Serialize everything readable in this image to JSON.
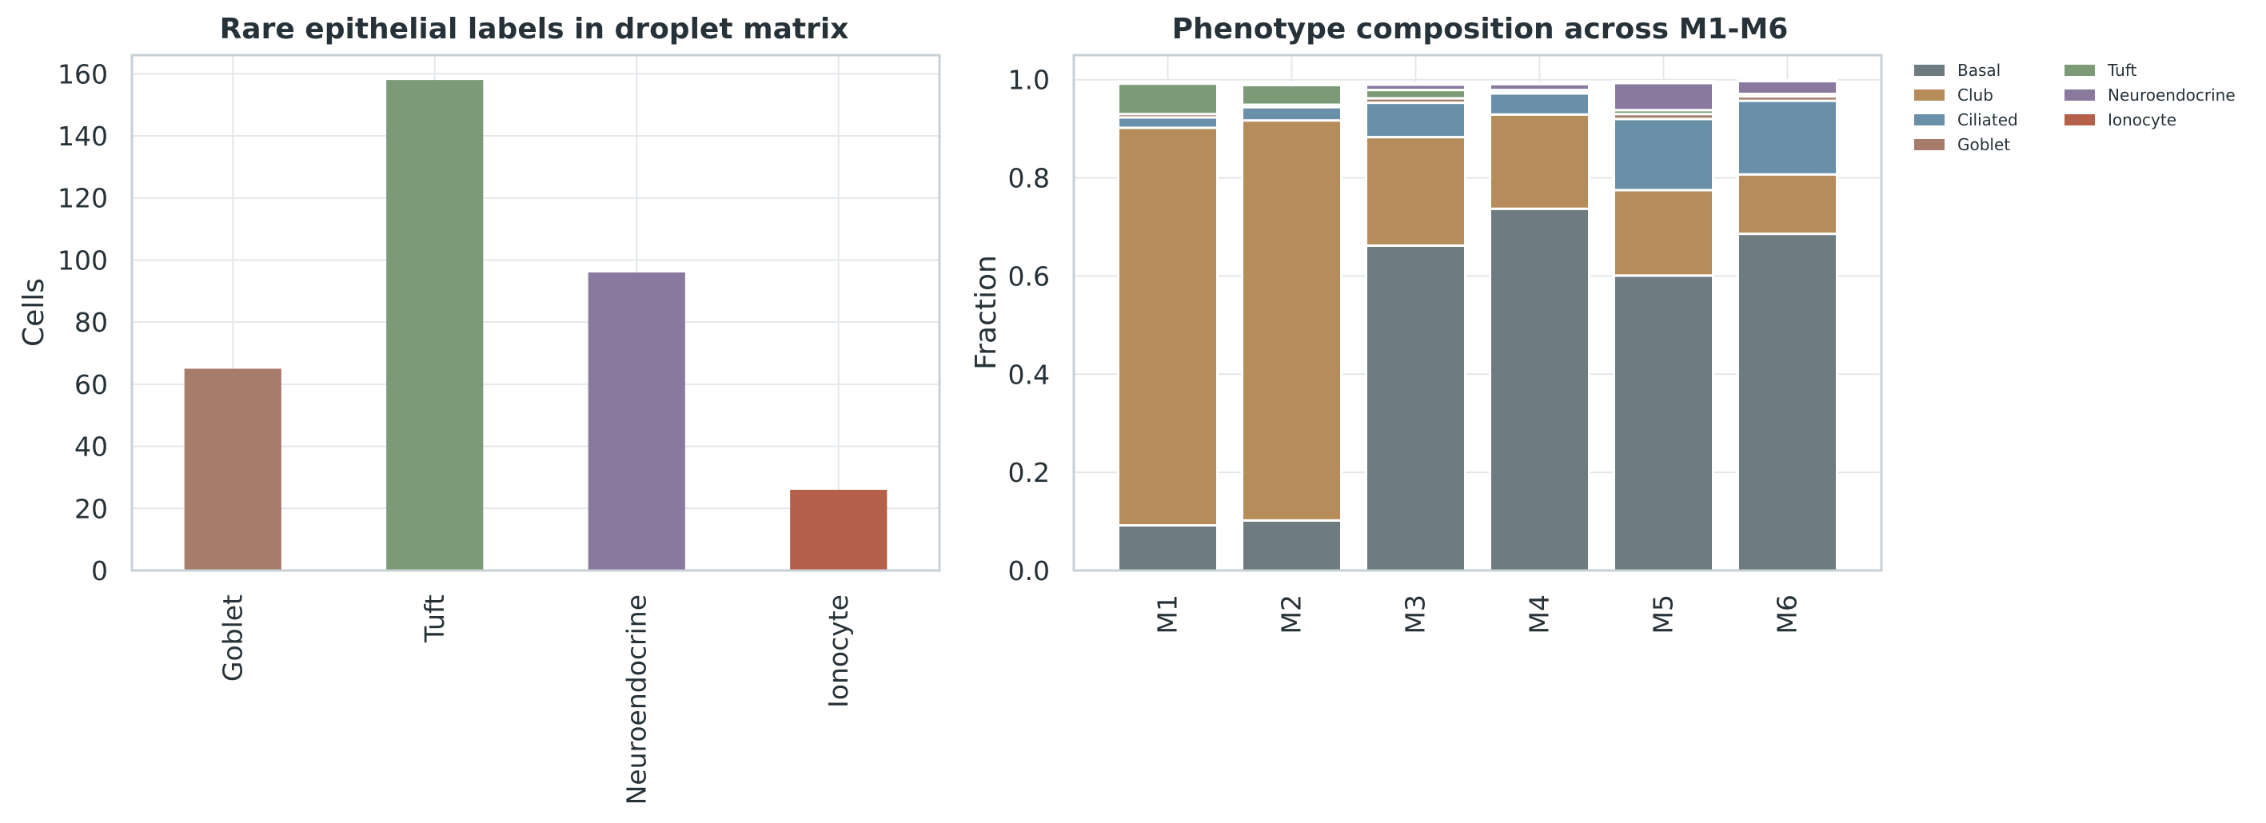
{
  "chart_data": [
    {
      "type": "bar",
      "title": "Rare epithelial labels in droplet matrix",
      "xlabel": "",
      "ylabel": "Cells",
      "ylim": [
        0,
        166
      ],
      "yticks": [
        0,
        20,
        40,
        60,
        80,
        100,
        120,
        140,
        160
      ],
      "grid": true,
      "categories": [
        "Goblet",
        "Tuft",
        "Neuroendocrine",
        "Ionocyte"
      ],
      "values": [
        65,
        158,
        96,
        26
      ],
      "colors": [
        "#a67c6a",
        "#7d9a77",
        "#8a799e",
        "#b5604b"
      ]
    },
    {
      "type": "bar",
      "stacked": true,
      "title": "Phenotype composition across M1-M6",
      "xlabel": "",
      "ylabel": "Fraction",
      "ylim": [
        0,
        1.05
      ],
      "yticks": [
        "0.0",
        "0.2",
        "0.4",
        "0.6",
        "0.8",
        "1.0"
      ],
      "grid": true,
      "legend_position": "outside-right",
      "categories": [
        "M1",
        "M2",
        "M3",
        "M4",
        "M5",
        "M6"
      ],
      "series": [
        {
          "name": "Basal",
          "color": "#6e7c81",
          "values": [
            0.092,
            0.102,
            0.662,
            0.737,
            0.601,
            0.686
          ]
        },
        {
          "name": "Club",
          "color": "#b68c5a",
          "values": [
            0.81,
            0.815,
            0.221,
            0.192,
            0.174,
            0.121
          ]
        },
        {
          "name": "Ciliated",
          "color": "#6a8fa8",
          "values": [
            0.021,
            0.027,
            0.07,
            0.043,
            0.145,
            0.15
          ]
        },
        {
          "name": "Goblet",
          "color": "#a67c6a",
          "values": [
            0.007,
            0.005,
            0.009,
            0.004,
            0.01,
            0.009
          ]
        },
        {
          "name": "Tuft",
          "color": "#7d9a77",
          "values": [
            0.062,
            0.04,
            0.017,
            0.003,
            0.008,
            0.005
          ]
        },
        {
          "name": "Neuroendocrine",
          "color": "#8a799e",
          "values": [
            0.003,
            0.004,
            0.011,
            0.012,
            0.055,
            0.026
          ]
        },
        {
          "name": "Ionocyte",
          "color": "#b5604b",
          "values": [
            0.001,
            0.001,
            0.002,
            0.001,
            0.004,
            0.002
          ]
        }
      ]
    }
  ]
}
